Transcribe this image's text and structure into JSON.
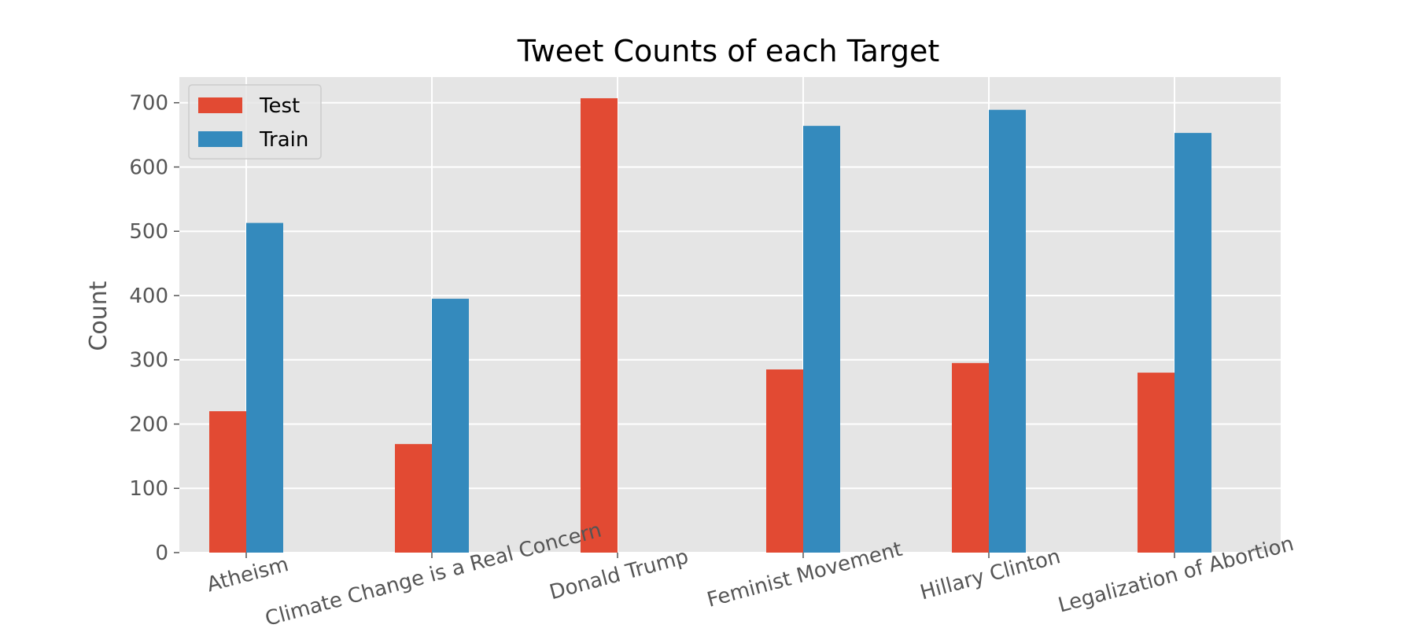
{
  "chart_data": {
    "type": "bar",
    "title": "Tweet Counts of each Target",
    "xlabel": "",
    "ylabel": "Count",
    "categories": [
      "Atheism",
      "Climate Change is a Real Concern",
      "Donald Trump",
      "Feminist Movement",
      "Hillary Clinton",
      "Legalization of Abortion"
    ],
    "series": [
      {
        "name": "Test",
        "color": "#E24A33",
        "values": [
          220,
          169,
          707,
          285,
          295,
          280
        ]
      },
      {
        "name": "Train",
        "color": "#348ABD",
        "values": [
          513,
          395,
          0,
          664,
          689,
          653
        ]
      }
    ],
    "ylim": [
      0,
      740
    ],
    "yticks": [
      0,
      100,
      200,
      300,
      400,
      500,
      600,
      700
    ],
    "grid": true,
    "legend_position": "top-left",
    "x_tick_rotation": -15,
    "style": {
      "plot_background": "#E5E5E5",
      "grid_color": "#FFFFFF",
      "tick_color": "#555555"
    }
  }
}
